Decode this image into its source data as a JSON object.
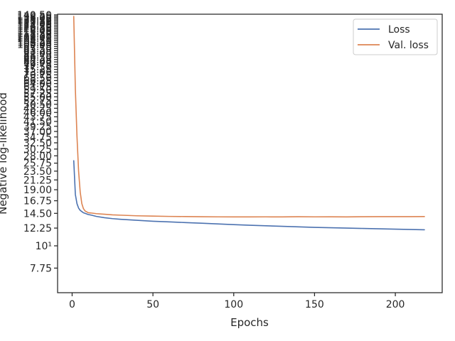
{
  "chart_data": {
    "type": "line",
    "xlabel": "Epochs",
    "ylabel": "Negative log-likelihood",
    "xlim": [
      -9,
      229
    ],
    "xticks": [
      0,
      50,
      100,
      150,
      200
    ],
    "yscale": "log",
    "ylim": [
      5.85,
      141.5
    ],
    "ytick_values": [
      7.75,
      10,
      12.25,
      14.5,
      16.75,
      19,
      21.25,
      23.5,
      25.75,
      28,
      30.25,
      32.5,
      34.75,
      37,
      39.25,
      41.5,
      43.75,
      46,
      48.25,
      50.5,
      52.75,
      55,
      57.25,
      59.5,
      61.75,
      64,
      66.25,
      68.5,
      70.75,
      73,
      75.25,
      77.5,
      79.75,
      82,
      84.25,
      86.5,
      88.75,
      91,
      93.25,
      95.5,
      97.75,
      100,
      102.25,
      104.5,
      106.75,
      109,
      111.25,
      113.5,
      115.75,
      118,
      120.25,
      122.5,
      124.75,
      127,
      129.25,
      131.5,
      133.75,
      136,
      138.25,
      140.5
    ],
    "ytick_labels": [
      "7.75",
      "10¹",
      "12.25",
      "14.50",
      "16.75",
      "19.00",
      "21.25",
      "23.50",
      "25.75",
      "28.00",
      "30.25",
      "32.50",
      "34.75",
      "37.00",
      "39.25",
      "41.50",
      "43.75",
      "46.00",
      "48.25",
      "50.50",
      "52.75",
      "55.00",
      "57.25",
      "59.50",
      "61.75",
      "64.00",
      "66.25",
      "68.50",
      "70.75",
      "73.00",
      "75.25",
      "77.50",
      "79.75",
      "82.00",
      "84.25",
      "86.50",
      "88.75",
      "91.00",
      "93.25",
      "95.50",
      "97.75",
      "100.00",
      "102.25",
      "104.50",
      "106.75",
      "109.00",
      "111.25",
      "113.50",
      "115.75",
      "118.00",
      "120.25",
      "122.50",
      "124.75",
      "127.00",
      "129.25",
      "131.50",
      "133.75",
      "136.00",
      "138.25",
      "140.50"
    ],
    "grid": false,
    "legend_position": "top-right",
    "series": [
      {
        "name": "Loss",
        "color": "#4c72b0",
        "x": [
          1,
          2,
          3,
          4,
          5,
          6,
          7,
          8,
          10,
          12,
          15,
          20,
          25,
          30,
          40,
          50,
          60,
          70,
          80,
          90,
          100,
          110,
          120,
          130,
          140,
          150,
          160,
          170,
          180,
          190,
          200,
          210,
          218
        ],
        "y": [
          26.5,
          18.0,
          16.2,
          15.4,
          15.0,
          14.8,
          14.6,
          14.5,
          14.3,
          14.2,
          14.0,
          13.8,
          13.65,
          13.55,
          13.4,
          13.25,
          13.15,
          13.05,
          12.95,
          12.85,
          12.75,
          12.65,
          12.58,
          12.5,
          12.42,
          12.35,
          12.3,
          12.25,
          12.2,
          12.15,
          12.1,
          12.05,
          12.02
        ]
      },
      {
        "name": "Val. loss",
        "color": "#dd8452",
        "x": [
          1,
          2,
          3,
          4,
          5,
          6,
          7,
          8,
          10,
          12,
          15,
          20,
          25,
          30,
          40,
          50,
          60,
          70,
          80,
          90,
          100,
          110,
          120,
          130,
          140,
          150,
          160,
          170,
          180,
          190,
          200,
          210,
          218
        ],
        "y": [
          138.0,
          60.0,
          35.0,
          23.5,
          18.5,
          16.2,
          15.3,
          14.9,
          14.6,
          14.55,
          14.45,
          14.35,
          14.25,
          14.2,
          14.1,
          14.05,
          14.0,
          13.98,
          13.95,
          13.93,
          13.92,
          13.92,
          13.93,
          13.92,
          13.95,
          13.93,
          13.94,
          13.92,
          13.95,
          13.96,
          13.97,
          13.96,
          13.98
        ]
      }
    ]
  }
}
